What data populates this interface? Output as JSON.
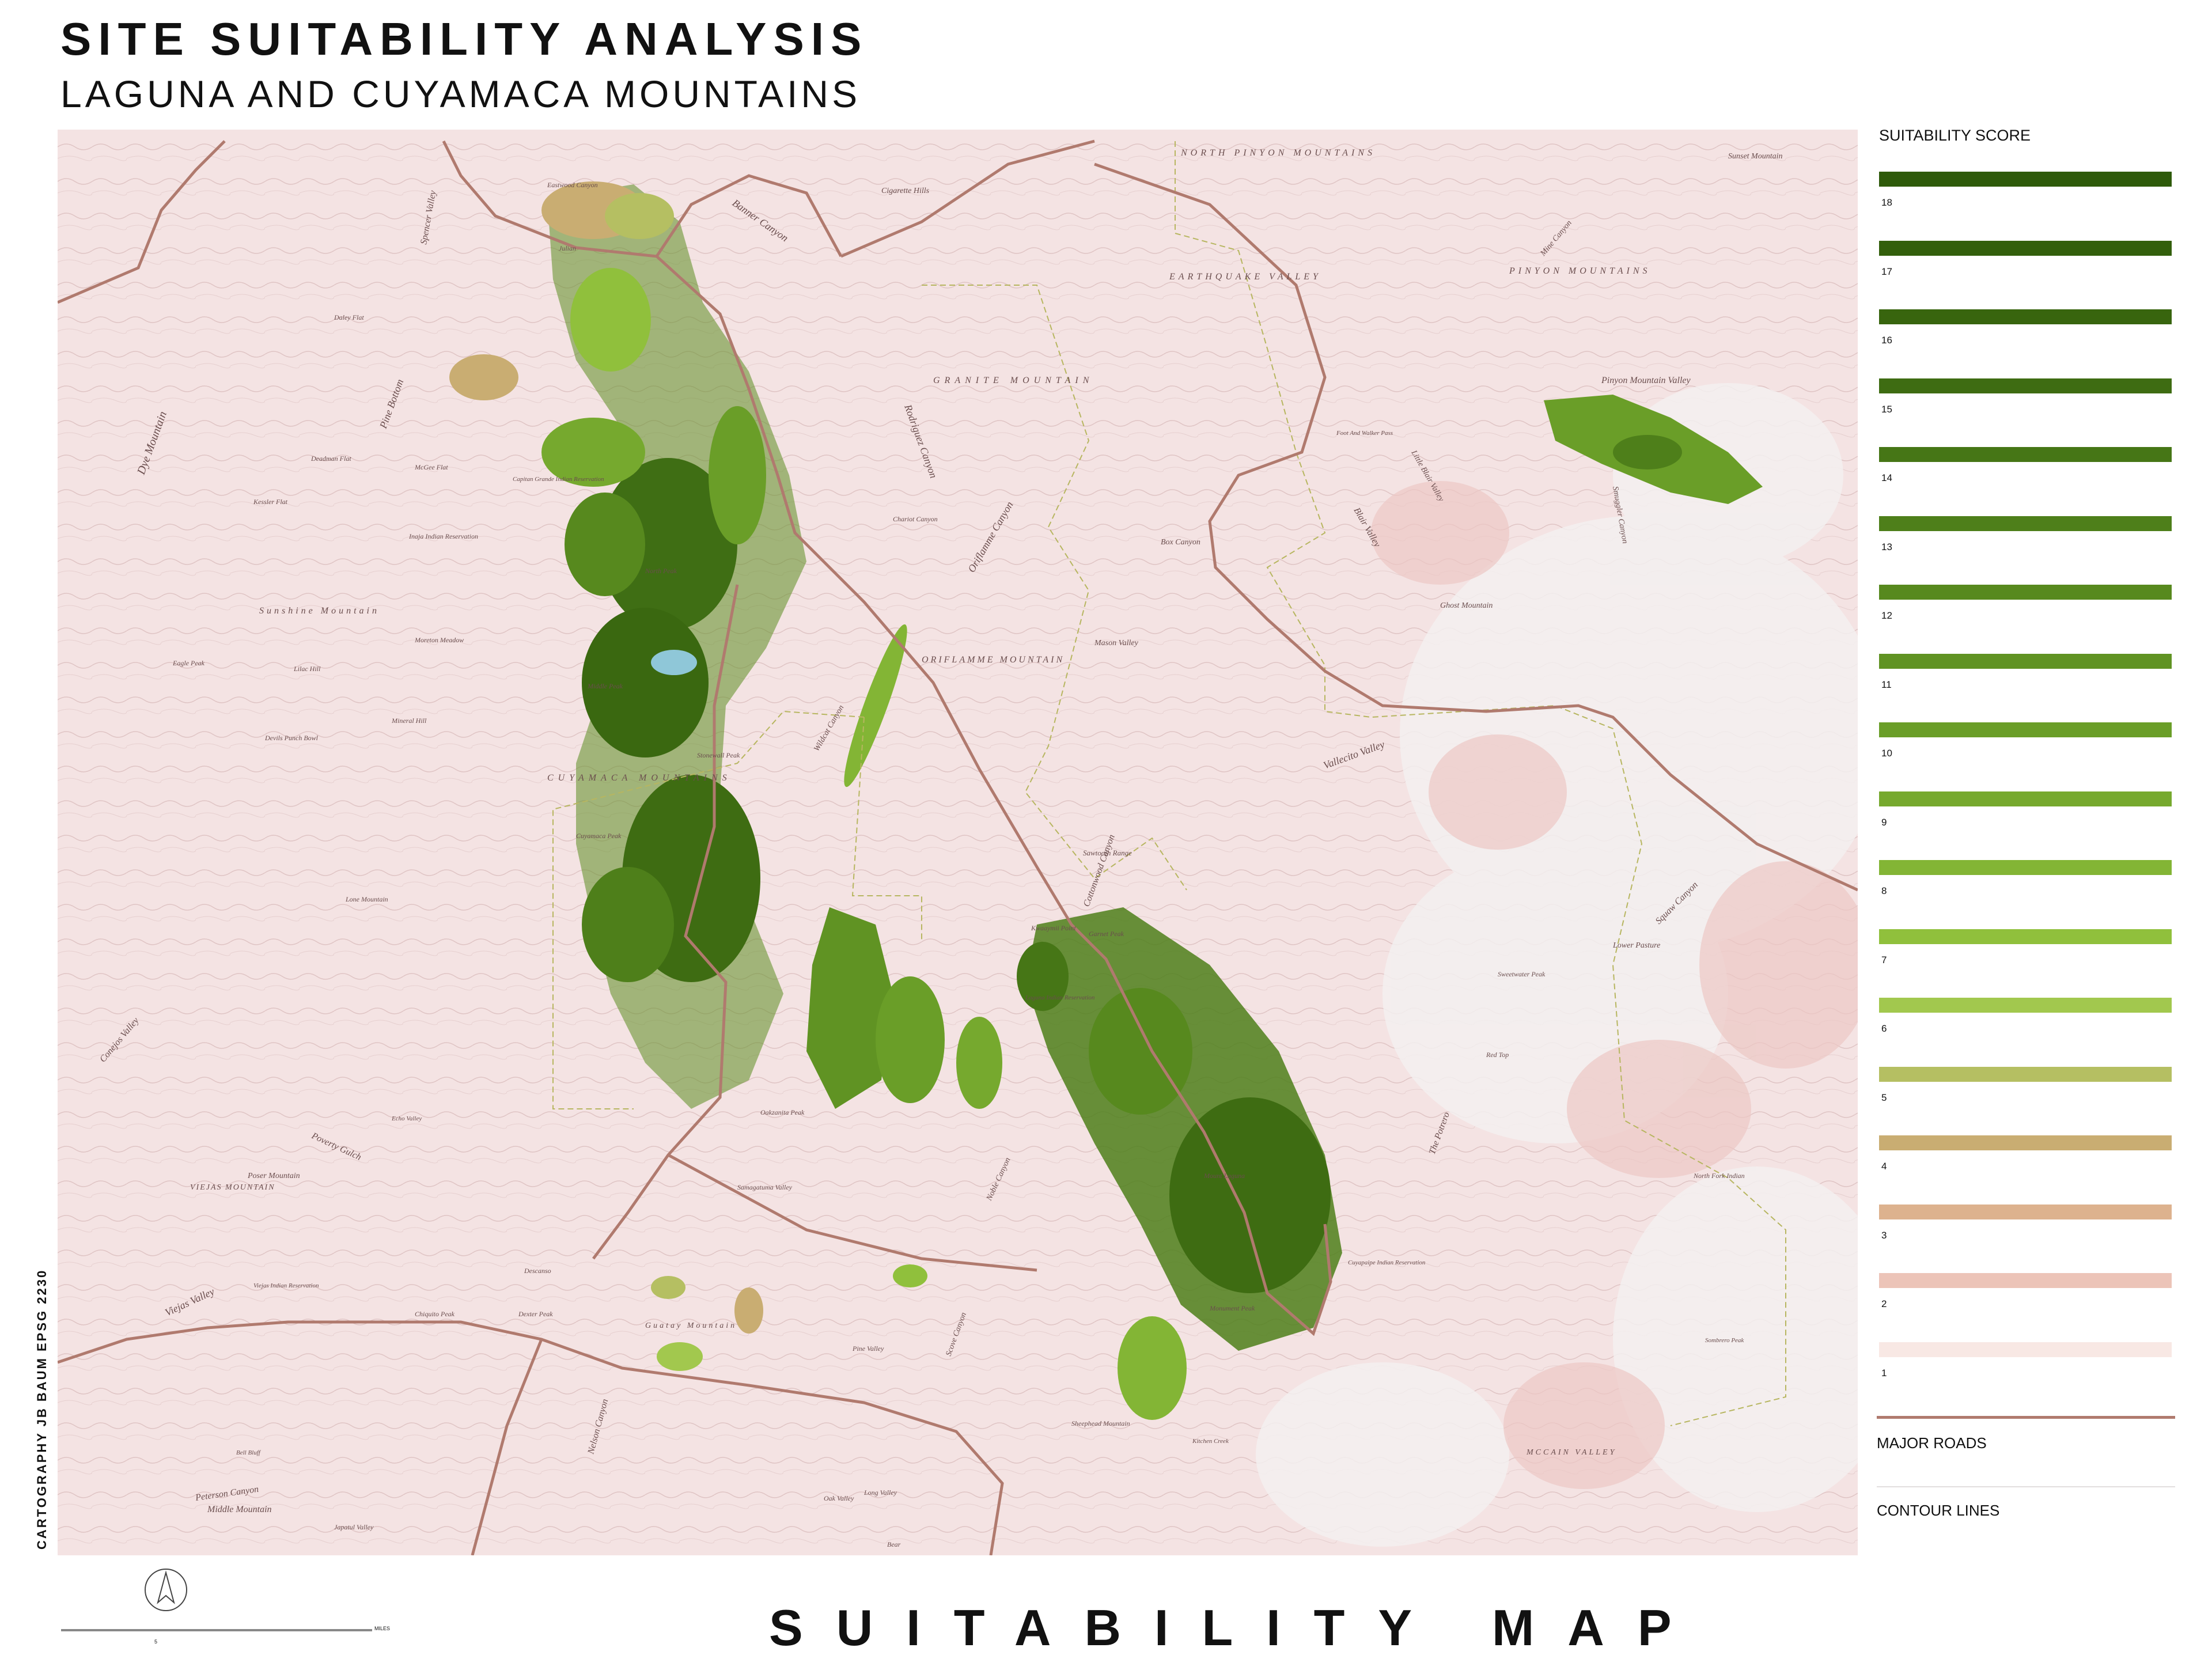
{
  "title": "SITE SUITABILITY ANALYSIS",
  "subtitle": "LAGUNA AND CUYAMACA MOUNTAINS",
  "legend": {
    "title": "SUITABILITY SCORE",
    "scores": [
      {
        "label": "18",
        "color": "#2e5a0a"
      },
      {
        "label": "17",
        "color": "#335f0c"
      },
      {
        "label": "16",
        "color": "#38650e"
      },
      {
        "label": "15",
        "color": "#3e6c12"
      },
      {
        "label": "14",
        "color": "#467616"
      },
      {
        "label": "13",
        "color": "#4e7f1a"
      },
      {
        "label": "12",
        "color": "#57891e"
      },
      {
        "label": "11",
        "color": "#609323"
      },
      {
        "label": "10",
        "color": "#6a9e28"
      },
      {
        "label": "9",
        "color": "#76a92e"
      },
      {
        "label": "8",
        "color": "#83b535"
      },
      {
        "label": "7",
        "color": "#90c03c"
      },
      {
        "label": "6",
        "color": "#a2c84e"
      },
      {
        "label": "5",
        "color": "#b5bf62"
      },
      {
        "label": "4",
        "color": "#c9ad72"
      },
      {
        "label": "3",
        "color": "#ddb28e"
      },
      {
        "label": "2",
        "color": "#ecc4b8"
      },
      {
        "label": "1",
        "color": "#f8e8e4"
      }
    ],
    "major_roads_label": "MAJOR ROADS",
    "contour_lines_label": "CONTOUR LINES",
    "road_color": "#b07a6e"
  },
  "credit": "CARTOGRAPHY JB BAUM EPSG 2230",
  "bottom_title": "SUITABILITY MAP",
  "scale": {
    "unit": "MILES",
    "value": "5"
  },
  "map": {
    "place_labels": [
      "NORTH PINYON MOUNTAINS",
      "Cigarette Hills",
      "Banner Canyon",
      "EARTHQUAKE VALLEY",
      "GRANITE MOUNTAIN",
      "Rodriguez Canyon",
      "Chariot Canyon",
      "Oriflamme Canyon",
      "ORIFLAMME MOUNTAIN",
      "Box Canyon",
      "Mason Valley",
      "Vallecito Valley",
      "Pinyon Mountain Valley",
      "PINYON MOUNTAINS",
      "Mine Canyon",
      "Little Blair Valley",
      "Blair Valley",
      "Smuggler Canyon",
      "Ghost Mountain",
      "Foot And Walker Pass",
      "Sunset Mountain",
      "Julian",
      "Eastwood Canyon",
      "Spencer Valley",
      "Dye Mountain",
      "Daley Flat",
      "Pine Bottom",
      "Deadman Flat",
      "McGee Flat",
      "Kessler Flat",
      "Inaja Indian Reservation",
      "Capitan Grande Indian Reservation",
      "Sunshine Mountain",
      "Eagle Peak",
      "Wildcat Canyon",
      "Middle Peak",
      "North Peak",
      "CUYAMACA MOUNTAINS",
      "Cuyamaca Peak",
      "Stonewall Peak",
      "Sawtooth Range",
      "Cottonwood Canyon",
      "Laguna Indian Reservation",
      "Garnet Peak",
      "Kwaaymii Point",
      "The Potrero",
      "Sweetwater Peak",
      "Lower Pasture",
      "Squaw Canyon",
      "Conejos Valley",
      "Poverty Gulch",
      "VIEJAS MOUNTAIN",
      "Poser Mountain",
      "Viejas Valley",
      "Viejas Indian Reservation",
      "Descanso",
      "Guatay Mountain",
      "Samagatuma Valley",
      "Pine Valley",
      "Noble Canyon",
      "Scove Canyon",
      "Cuyapaipe Indian Reservation",
      "Mount Laguna",
      "Monument Peak",
      "Nelson Canyon",
      "Peterson Canyon",
      "Middle Mountain",
      "Oak Valley",
      "Japatul Valley",
      "Sheephead Mountain",
      "Kitchen Creek",
      "Long Valley",
      "MCCAIN VALLEY",
      "Chiquito Peak",
      "Dexter Peak",
      "Bell Bluff",
      "Oakzanita Peak",
      "Echo Valley",
      "Lone Mountain",
      "North Fork Indian",
      "Sombrero Peak",
      "Red Top",
      "Mineral Hill",
      "Devils Punch Bowl",
      "Lilac Hill",
      "Moreton Meadow",
      "Bear"
    ]
  }
}
